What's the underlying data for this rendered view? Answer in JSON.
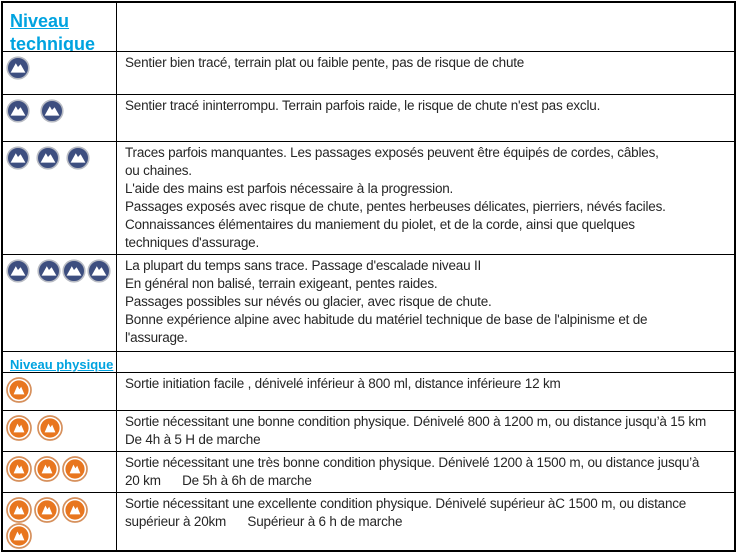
{
  "sections": [
    {
      "id": "technique",
      "header_label": "Niveau technique",
      "badge_icon": "mountain-badge-blue-icon",
      "rows": [
        {
          "level": 1,
          "description": "Sentier bien tracé, terrain plat ou faible pente, pas de risque de chute"
        },
        {
          "level": 2,
          "description": "Sentier tracé ininterrompu. Terrain parfois raide, le risque de chute n'est pas exclu."
        },
        {
          "level": 3,
          "description": "Traces parfois manquantes. Les passages exposés peuvent être équipés de cordes, câbles,\nou chaines.\nL'aide des mains est parfois nécessaire à la progression.\nPassages exposés avec risque de chute, pentes herbeuses délicates, pierriers, névés faciles.\nConnaissances élémentaires du maniement du piolet, et de la corde, ainsi que quelques\ntechniques d'assurage."
        },
        {
          "level": 4,
          "description": "La plupart du temps sans trace. Passage d'escalade niveau II\nEn général non balisé, terrain exigeant, pentes raides.\nPassages possibles sur névés ou glacier, avec risque de chute.\nBonne expérience alpine avec habitude du matériel technique de base de l'alpinisme et de\nl'assurage."
        }
      ]
    },
    {
      "id": "physique",
      "header_label": "Niveau physique",
      "badge_icon": "mountain-badge-orange-icon",
      "rows": [
        {
          "level": 1,
          "description": "Sortie initiation facile , dénivelé inférieur à 800 ml, distance inférieure 12 km"
        },
        {
          "level": 2,
          "description": "Sortie nécessitant une bonne condition physique. Dénivelé 800 à 1200 m, ou distance jusqu’à 15 km\nDe 4h à 5 H de marche"
        },
        {
          "level": 3,
          "description": "Sortie nécessitant une très bonne condition physique. Dénivelé 1200 à 1500 m, ou distance jusqu’à\n20 km      De 5h à 6h de marche"
        },
        {
          "level": 4,
          "description": "Sortie nécessitant une excellente condition physique. Dénivelé supérieur àC 1500 m, ou distance\nsupérieur à 20km      Supérieur à 6 h de marche"
        }
      ]
    }
  ],
  "colors": {
    "header_link": "#00a3e0",
    "technical_badge": "#3d4e7f",
    "technical_badge_ring": "#b9bcc4",
    "physical_badge": "#e8761f",
    "physical_badge_ring": "#d6905c",
    "border": "#000000",
    "text": "#262626"
  }
}
